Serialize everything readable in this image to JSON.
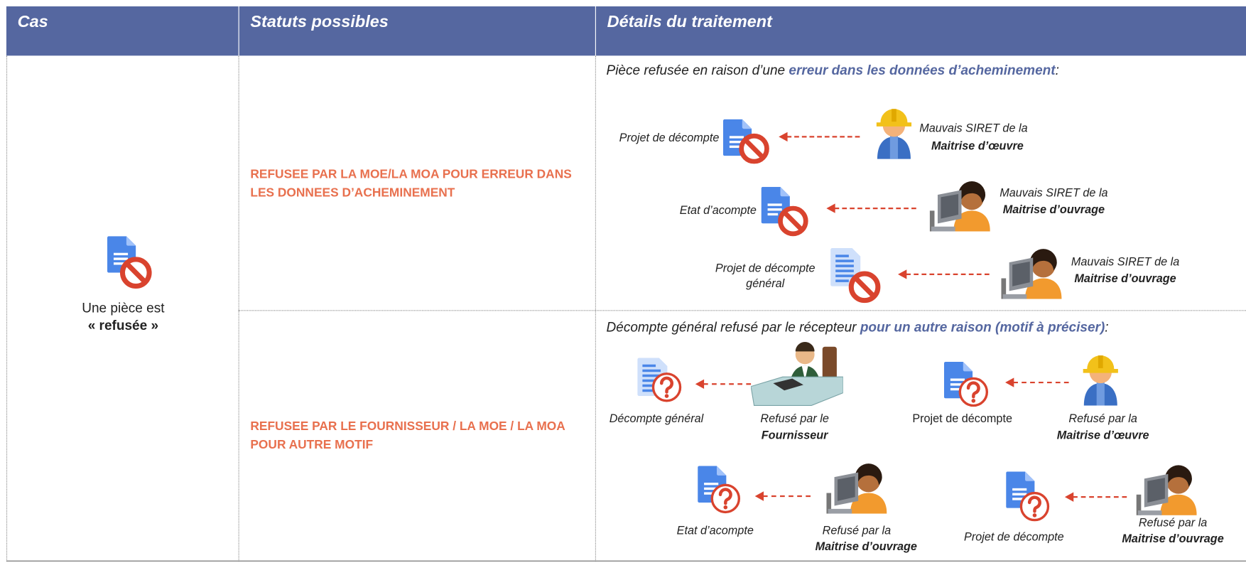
{
  "header": {
    "columns": [
      "Cas",
      "Statuts possibles",
      "Détails du traitement"
    ]
  },
  "case": {
    "line1": "Une pièce est",
    "line2": "« refusée »"
  },
  "rows": [
    {
      "status": "REFUSEE PAR LA MOE/LA MOA POUR ERREUR DANS LES DONNEES D’ACHEMINEMENT",
      "intro": {
        "text": "Pièce refusée en raison d’une",
        "highlight": "erreur dans les données d’acheminement",
        "end": ":"
      },
      "items": [
        {
          "document": "Projet de décompte",
          "reason": "Mauvais SIRET de la",
          "actor": "Maitrise d’œuvre"
        },
        {
          "document": "Etat d’acompte",
          "reason": "Mauvais SIRET de la",
          "actor": "Maitrise d’ouvrage"
        },
        {
          "document": "Projet de décompte général",
          "reason": "Mauvais SIRET de la",
          "actor": "Maitrise d’ouvrage"
        }
      ]
    },
    {
      "status": "REFUSEE PAR LE FOURNISSEUR / LA MOE / LA MOA POUR AUTRE MOTIF",
      "intro": {
        "text": "Décompte général refusé par le récepteur",
        "highlight": "pour un autre raison (motif à préciser)",
        "end": ":"
      },
      "items": [
        {
          "document": "Décompte général",
          "reason": "Refusé par le",
          "actor": "Fournisseur"
        },
        {
          "document": "Projet de décompte",
          "reason": "Refusé par la",
          "actor": "Maitrise d’œuvre"
        },
        {
          "document": "Etat d’acompte",
          "reason": "Refusé par la",
          "actor": "Maitrise d’ouvrage"
        },
        {
          "document": "Projet de décompte",
          "reason": "Refusé par la",
          "actor": "Maitrise d’ouvrage"
        }
      ]
    }
  ]
}
